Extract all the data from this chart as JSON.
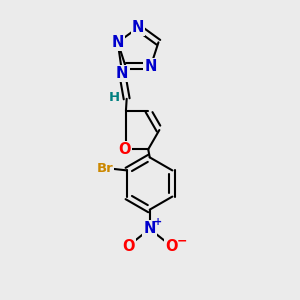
{
  "background_color": "#ebebeb",
  "bond_color": "#000000",
  "bond_width": 1.5,
  "atom_colors": {
    "N": "#0000cc",
    "O": "#ff0000",
    "Br": "#cc8800",
    "C": "#000000",
    "H": "#008080"
  },
  "font_size_atom": 10.5,
  "font_size_small": 9.5
}
